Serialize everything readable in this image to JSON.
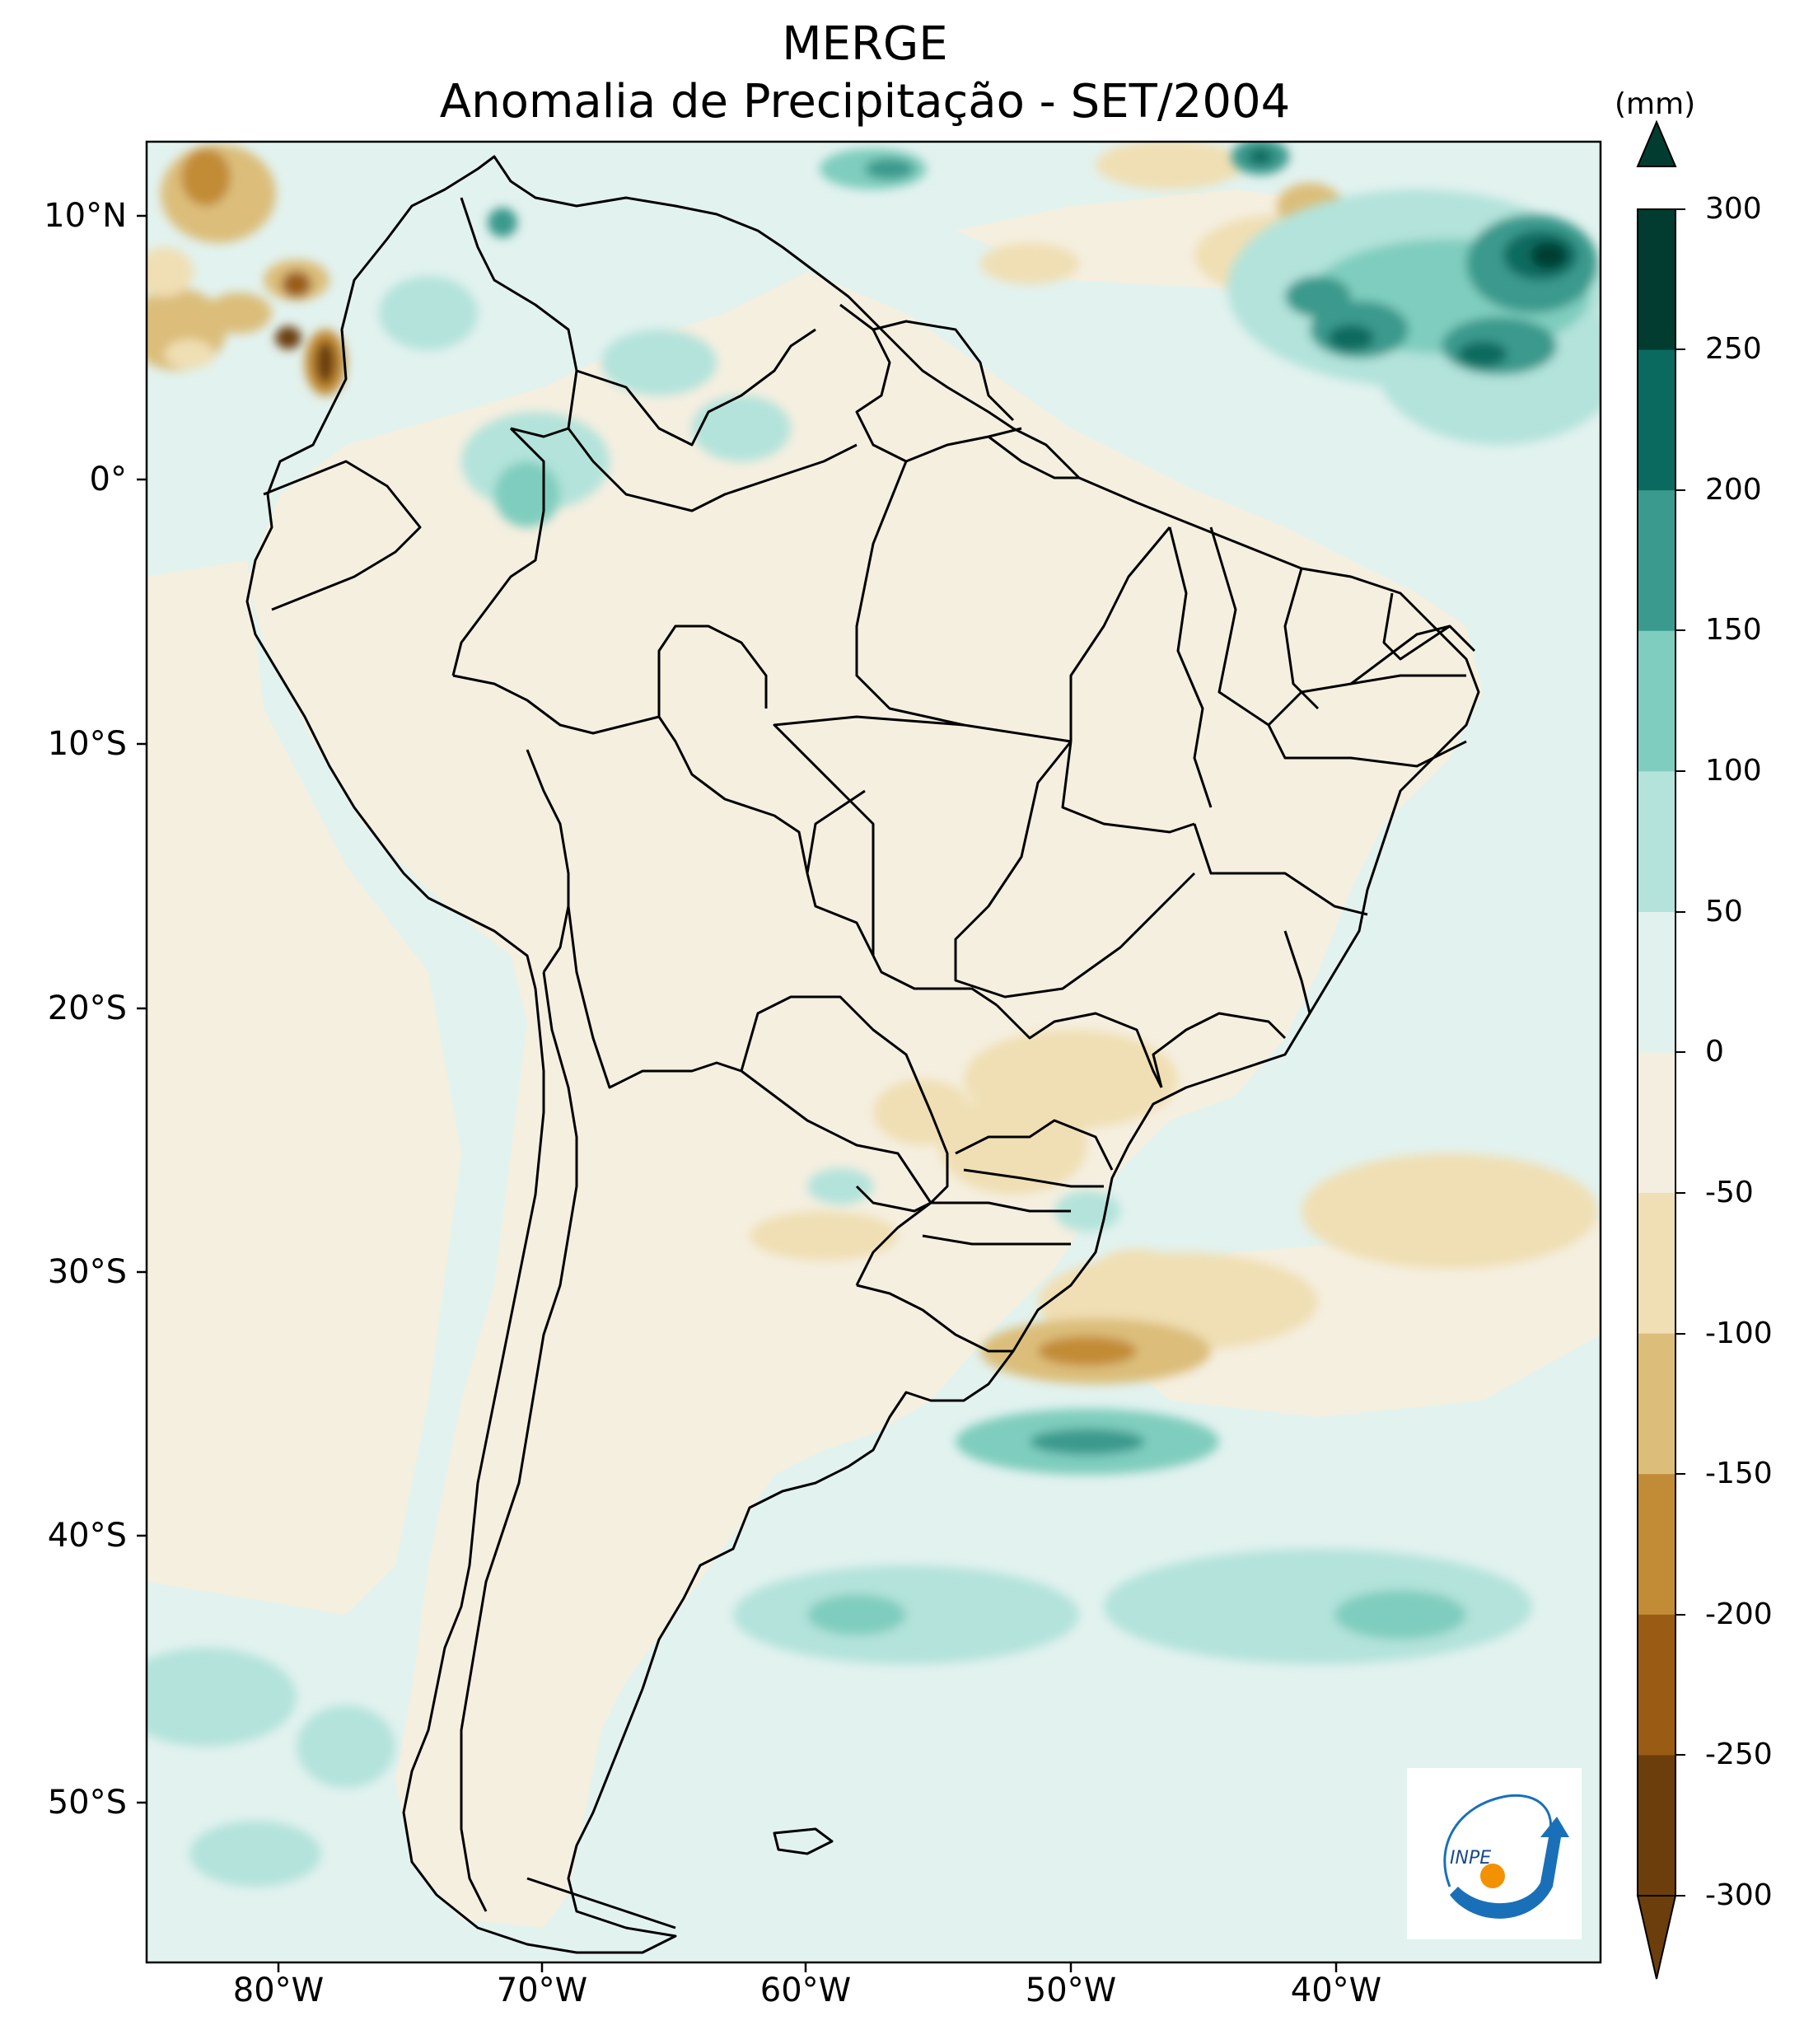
{
  "map": {
    "title": "MERGE",
    "subtitle": "Anomalia de Precipitação - SET/2004",
    "units": "(mm)",
    "lat_labels": [
      "10°N",
      "0°",
      "10°S",
      "20°S",
      "30°S",
      "40°S",
      "50°S"
    ],
    "lon_labels": [
      "80°W",
      "70°W",
      "60°W",
      "50°W",
      "40°W"
    ],
    "logo_text": "INPE"
  },
  "colorbar": {
    "levels": [
      "300",
      "250",
      "200",
      "150",
      "100",
      "50",
      "0",
      "-50",
      "-100",
      "-150",
      "-200",
      "-250",
      "-300"
    ],
    "colors": [
      "#023c30",
      "#0b6a5f",
      "#3a9a8d",
      "#7fcdbe",
      "#b3e3db",
      "#e0f1ee",
      "#f4eee0",
      "#f0dfb4",
      "#dcbe7a",
      "#c28b36",
      "#9a5c15",
      "#6b3e0c"
    ]
  },
  "colors": {
    "ocean_base": "#e2f2ef",
    "land_base": "#f5efe0",
    "border": "#000000"
  }
}
